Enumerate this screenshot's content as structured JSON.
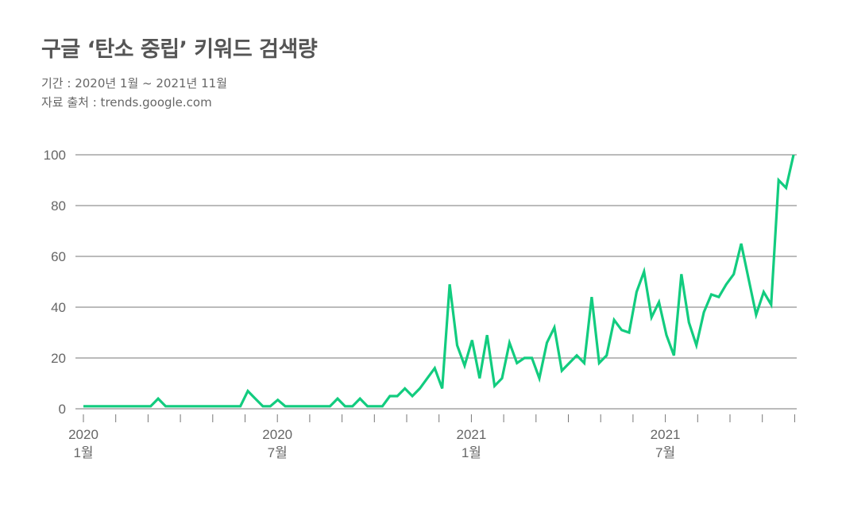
{
  "header": {
    "title": "구글 ‘탄소 중립’ 키워드 검색량",
    "period": "기간 : 2020년 1월 ~ 2021년 11월",
    "source": "자료 출처 : trends.google.com"
  },
  "chart_data": {
    "type": "line",
    "title": "구글 ‘탄소 중립’ 키워드 검색량",
    "xlabel": "",
    "ylabel": "",
    "x_interval": "week",
    "xlim": [
      "2020-01",
      "2021-11"
    ],
    "ylim": [
      0,
      100
    ],
    "grid": true,
    "y_ticks": [
      0,
      20,
      40,
      60,
      80,
      100
    ],
    "x_tick_labels": [
      {
        "month": "2020-01",
        "year": "2020",
        "label": "1월"
      },
      {
        "month": "2020-07",
        "year": "2020",
        "label": "7월"
      },
      {
        "month": "2021-01",
        "year": "2021",
        "label": "1월"
      },
      {
        "month": "2021-07",
        "year": "2021",
        "label": "7월"
      }
    ],
    "color": "#12cc7f",
    "values": [
      1,
      1,
      1,
      1,
      1,
      1,
      1,
      1,
      1,
      1,
      4,
      1,
      1,
      1,
      1,
      1,
      1,
      1,
      1,
      1,
      1,
      1,
      7,
      4,
      1,
      1,
      3.5,
      1,
      1,
      1,
      1,
      1,
      1,
      1,
      4,
      1,
      1,
      4,
      1,
      1,
      1,
      5,
      5,
      8,
      5,
      8,
      12,
      16,
      8,
      49,
      25,
      17,
      27,
      12,
      29,
      9,
      12,
      26,
      18,
      20,
      20,
      12,
      26,
      32,
      15,
      18,
      21,
      18,
      44,
      18,
      21,
      35,
      31,
      30,
      46,
      54,
      36,
      42,
      29,
      21,
      53,
      34,
      25,
      38,
      45,
      44,
      49,
      53,
      65,
      51,
      37,
      46,
      41,
      90,
      87,
      100
    ]
  }
}
